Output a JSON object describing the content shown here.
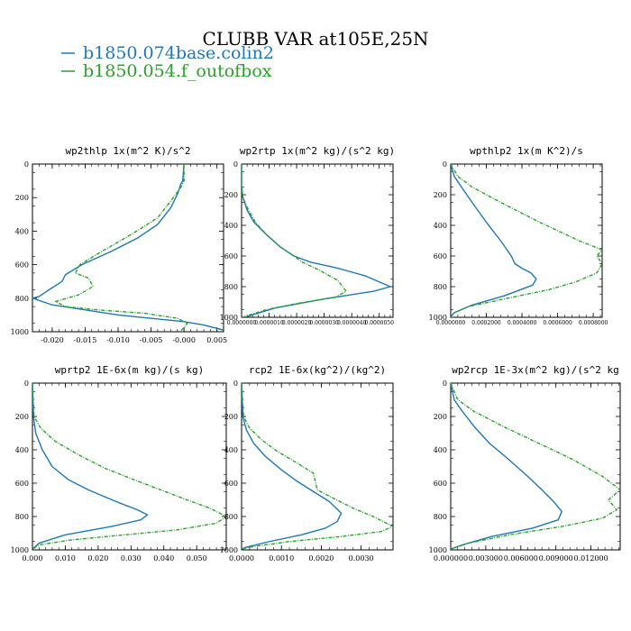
{
  "title": "CLUBB VAR at105E,25N",
  "colors": {
    "series1": "#1f77b4",
    "series2": "#2ca02c"
  },
  "legend": [
    {
      "label": "b1850.074base.colin2",
      "color": "#1f77b4",
      "dashed": false
    },
    {
      "label": "b1850.054.f_outofbox",
      "color": "#2ca02c",
      "dashed": true
    }
  ],
  "chart_data": [
    {
      "type": "line",
      "title": "wp2thlp  1x(m^2 K)/s^2",
      "xlim": [
        -0.023,
        0.006
      ],
      "ylim": [
        1000,
        0
      ],
      "xticks": [
        "-0.020",
        "-0.015",
        "-0.010",
        "-0.005",
        "-0.000",
        "0.005"
      ],
      "xtick_values": [
        -0.02,
        -0.015,
        -0.01,
        -0.005,
        0.0,
        0.005
      ],
      "yticks": [
        "0",
        "200",
        "400",
        "600",
        "800",
        "1000"
      ],
      "series": [
        {
          "name": "b1850.074base.colin2",
          "dashed": false,
          "x": [
            0.0,
            -0.0002,
            -0.0005,
            -0.001,
            -0.002,
            -0.004,
            -0.007,
            -0.011,
            -0.0155,
            -0.018,
            -0.0185,
            -0.0205,
            -0.022,
            -0.023,
            -0.02,
            -0.01,
            0.0,
            0.003,
            0.006
          ],
          "y": [
            0,
            100,
            120,
            180,
            260,
            360,
            440,
            520,
            600,
            660,
            700,
            750,
            790,
            800,
            840,
            900,
            940,
            960,
            990
          ]
        },
        {
          "name": "b1850.054.f_outofbox",
          "dashed": true,
          "x": [
            0.0,
            0.0,
            -0.0005,
            -0.002,
            -0.004,
            -0.008,
            -0.012,
            -0.0158,
            -0.0165,
            -0.0145,
            -0.0138,
            -0.016,
            -0.0195,
            -0.018,
            -0.013,
            -0.006,
            -0.001,
            0.0005,
            0.0,
            -0.0005
          ],
          "y": [
            0,
            100,
            140,
            220,
            320,
            420,
            510,
            600,
            650,
            680,
            730,
            780,
            820,
            850,
            870,
            890,
            920,
            950,
            975,
            995
          ]
        }
      ]
    },
    {
      "type": "line",
      "title": "wp2rtp  1x(m^2 kg)/(s^2 kg)",
      "xlim": [
        0.0,
        5.5e-06
      ],
      "ylim": [
        1000,
        0
      ],
      "xticks": [
        "0.0000000",
        "0.0000010",
        "0.0000020",
        "0.0000030",
        "0.0000040",
        "0.0000050"
      ],
      "xtick_values": [
        0.0,
        1e-06,
        2e-06,
        3e-06,
        4e-06,
        5e-06
      ],
      "yticks": [
        "0",
        "200",
        "400",
        "600",
        "800",
        "1000"
      ],
      "series": [
        {
          "name": "b1850.074base.colin2",
          "dashed": false,
          "x": [
            0.0,
            0.0,
            5e-08,
            2e-07,
            4.5e-07,
            9e-07,
            1.4e-06,
            1.9e-06,
            2.5e-06,
            3.5e-06,
            4.5e-06,
            5.4e-06,
            4.8e-06,
            3e-06,
            1.2e-06,
            2e-07
          ],
          "y": [
            0,
            150,
            220,
            300,
            380,
            460,
            540,
            600,
            640,
            680,
            730,
            800,
            830,
            880,
            940,
            995
          ]
        },
        {
          "name": "b1850.054.f_outofbox",
          "dashed": true,
          "x": [
            0.0,
            0.0,
            5e-08,
            2.5e-07,
            5e-07,
            9e-07,
            1.4e-06,
            1.9e-06,
            2.2e-06,
            2.8e-06,
            3.5e-06,
            3.8e-06,
            3.4e-06,
            2e-06,
            9e-07,
            1e-07
          ],
          "y": [
            0,
            150,
            220,
            300,
            380,
            460,
            540,
            600,
            640,
            690,
            760,
            830,
            870,
            910,
            950,
            995
          ]
        }
      ]
    },
    {
      "type": "line",
      "title": "wpthlp2  1x(m K^2)/s",
      "xlim": [
        0.0,
        0.00085
      ],
      "ylim": [
        1000,
        0
      ],
      "xticks": [
        "0.0000000",
        "0.0002000",
        "0.0004000",
        "0.0006000",
        "0.0008000"
      ],
      "xtick_values": [
        0.0,
        0.0002,
        0.0004,
        0.0006,
        0.0008
      ],
      "yticks": [
        "0",
        "200",
        "400",
        "600",
        "800",
        "1000"
      ],
      "series": [
        {
          "name": "b1850.074base.colin2",
          "dashed": false,
          "x": [
            0.0,
            2e-05,
            6e-05,
            0.00012,
            0.0002,
            0.00028,
            0.00034,
            0.00036,
            0.0004,
            0.00045,
            0.00048,
            0.00046,
            0.0003,
            0.00012,
            2e-05,
            0.0
          ],
          "y": [
            0,
            80,
            150,
            250,
            380,
            500,
            600,
            650,
            680,
            710,
            750,
            790,
            860,
            920,
            970,
            995
          ]
        },
        {
          "name": "b1850.054.f_outofbox",
          "dashed": true,
          "x": [
            0.0,
            4e-05,
            0.00012,
            0.00028,
            0.0005,
            0.00072,
            0.00085,
            0.00082,
            0.00085,
            0.00082,
            0.0007,
            0.00055,
            0.0003,
            0.0001,
            2e-05,
            0.0
          ],
          "y": [
            0,
            80,
            150,
            250,
            380,
            500,
            560,
            600,
            650,
            710,
            770,
            820,
            880,
            930,
            970,
            995
          ]
        }
      ]
    },
    {
      "type": "line",
      "title": "wprtp2  1E-6x(m kg)/(s kg)",
      "xlim": [
        0.0,
        0.059
      ],
      "ylim": [
        1000,
        0
      ],
      "xticks": [
        "0.000",
        "0.010",
        "0.020",
        "0.030",
        "0.040",
        "0.050"
      ],
      "xtick_values": [
        0.0,
        0.01,
        0.02,
        0.03,
        0.04,
        0.05
      ],
      "yticks": [
        "0",
        "200",
        "400",
        "600",
        "800",
        "1000"
      ],
      "series": [
        {
          "name": "b1850.074base.colin2",
          "dashed": false,
          "x": [
            0.0,
            0.0003,
            0.001,
            0.003,
            0.006,
            0.011,
            0.017,
            0.023,
            0.028,
            0.032,
            0.035,
            0.033,
            0.024,
            0.01,
            0.002,
            0.0
          ],
          "y": [
            0,
            200,
            300,
            400,
            500,
            580,
            640,
            690,
            730,
            760,
            790,
            820,
            860,
            910,
            960,
            995
          ]
        },
        {
          "name": "b1850.054.f_outofbox",
          "dashed": true,
          "x": [
            0.0,
            0.0005,
            0.0025,
            0.007,
            0.014,
            0.022,
            0.031,
            0.039,
            0.047,
            0.054,
            0.059,
            0.056,
            0.044,
            0.028,
            0.012,
            0.002,
            0.0
          ],
          "y": [
            0,
            200,
            270,
            350,
            430,
            510,
            580,
            640,
            700,
            750,
            800,
            840,
            880,
            910,
            940,
            970,
            995
          ]
        }
      ]
    },
    {
      "type": "line",
      "title": "rcp2  1E-6x(kg^2)/(kg^2)",
      "xlim": [
        0.0,
        0.0038
      ],
      "ylim": [
        1000,
        0
      ],
      "xticks": [
        "0.0000",
        "0.0010",
        "0.0020",
        "0.0030"
      ],
      "xtick_values": [
        0.0,
        0.001,
        0.002,
        0.003
      ],
      "yticks": [
        "0",
        "200",
        "400",
        "600",
        "800",
        "1000"
      ],
      "series": [
        {
          "name": "b1850.074base.colin2",
          "dashed": false,
          "x": [
            0.0,
            3e-05,
            0.00012,
            0.0003,
            0.0006,
            0.001,
            0.0014,
            0.0018,
            0.0022,
            0.0025,
            0.0024,
            0.0021,
            0.0015,
            0.0007,
            0.0001,
            0.0
          ],
          "y": [
            0,
            200,
            280,
            360,
            440,
            520,
            590,
            650,
            710,
            780,
            830,
            870,
            910,
            950,
            985,
            995
          ]
        },
        {
          "name": "b1850.054.f_outofbox",
          "dashed": true,
          "x": [
            0.0,
            5e-05,
            0.0002,
            0.0005,
            0.0009,
            0.0014,
            0.0018,
            0.0019,
            0.0023,
            0.0028,
            0.0033,
            0.0038,
            0.0035,
            0.0025,
            0.0012,
            0.0003,
            0.0
          ],
          "y": [
            0,
            200,
            270,
            340,
            410,
            480,
            540,
            640,
            690,
            750,
            800,
            860,
            890,
            920,
            950,
            980,
            995
          ]
        }
      ]
    },
    {
      "type": "line",
      "title": "wp2rcp  1E-3x(m^2 kg)/(s^2 kg",
      "xlim": [
        0.0,
        0.0145
      ],
      "ylim": [
        1000,
        0
      ],
      "xticks": [
        "0.000000",
        "0.003000",
        "0.006000",
        "0.009000",
        "0.012000"
      ],
      "xtick_values": [
        0.0,
        0.003,
        0.006,
        0.009,
        0.012
      ],
      "yticks": [
        "0",
        "200",
        "400",
        "600",
        "800",
        "1000"
      ],
      "series": [
        {
          "name": "b1850.074base.colin2",
          "dashed": false,
          "x": [
            0.0,
            0.0003,
            0.001,
            0.002,
            0.0033,
            0.005,
            0.0066,
            0.0078,
            0.0088,
            0.0095,
            0.0092,
            0.007,
            0.0035,
            0.001,
            0.0
          ],
          "y": [
            0,
            100,
            170,
            260,
            360,
            460,
            560,
            640,
            710,
            770,
            820,
            870,
            920,
            970,
            995
          ]
        },
        {
          "name": "b1850.054.f_outofbox",
          "dashed": true,
          "x": [
            0.0,
            0.0006,
            0.002,
            0.0045,
            0.0075,
            0.0105,
            0.013,
            0.0145,
            0.0135,
            0.0142,
            0.013,
            0.0095,
            0.005,
            0.0015,
            0.0
          ],
          "y": [
            0,
            100,
            170,
            260,
            360,
            460,
            560,
            640,
            700,
            760,
            810,
            860,
            910,
            960,
            995
          ]
        }
      ]
    }
  ]
}
